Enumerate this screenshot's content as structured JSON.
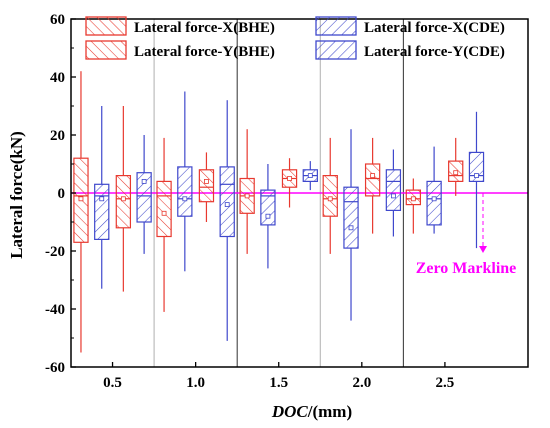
{
  "chart_data": {
    "type": "box",
    "title": "",
    "xlabel_italic": "DOC",
    "xlabel_rest": "/(mm)",
    "ylabel": "Lateral force(kN)",
    "ylim": [
      -60,
      60
    ],
    "yticks": [
      -60,
      -40,
      -20,
      0,
      20,
      40,
      60
    ],
    "categories": [
      "0.5",
      "1.0",
      "1.5",
      "2.0",
      "2.5"
    ],
    "xlim": [
      0.25,
      3.0
    ],
    "zero_line": {
      "value": 0,
      "label": "Zero Markline",
      "color": "#ff00ff"
    },
    "legend": {
      "placement": "top",
      "entries": [
        "Lateral force-X(BHE)",
        "Lateral force-Y(BHE)",
        "Lateral force-X(CDE)",
        "Lateral force-Y(CDE)"
      ]
    },
    "series": [
      {
        "name": "Lateral force-X(BHE)",
        "color": "#e8392f",
        "hatch": "up",
        "offset": -0.19,
        "boxes": [
          {
            "min": -55,
            "q1": -17,
            "median": -1,
            "q3": 12,
            "max": 42,
            "mean": -2
          },
          {
            "min": -41,
            "q1": -15,
            "median": -1,
            "q3": 4,
            "max": 19,
            "mean": -7
          },
          {
            "min": -21,
            "q1": -7,
            "median": -1,
            "q3": 5,
            "max": 22,
            "mean": -1
          },
          {
            "min": -21,
            "q1": -8,
            "median": -2,
            "q3": 6,
            "max": 19,
            "mean": -2
          },
          {
            "min": -14,
            "q1": -4,
            "median": -2,
            "q3": 1,
            "max": 5,
            "mean": -2
          }
        ]
      },
      {
        "name": "Lateral force-X(CDE)",
        "color": "#3f48cc",
        "hatch": "down",
        "offset": -0.065,
        "boxes": [
          {
            "min": -33,
            "q1": -16,
            "median": -1,
            "q3": 3,
            "max": 30,
            "mean": -2
          },
          {
            "min": -27,
            "q1": -8,
            "median": -2,
            "q3": 9,
            "max": 35,
            "mean": -2
          },
          {
            "min": -26,
            "q1": -11,
            "median": -1,
            "q3": 1,
            "max": 10,
            "mean": -8
          },
          {
            "min": -44,
            "q1": -19,
            "median": -3,
            "q3": 2,
            "max": 22,
            "mean": -12
          },
          {
            "min": -14,
            "q1": -11,
            "median": -2,
            "q3": 4,
            "max": 16,
            "mean": -2
          }
        ]
      },
      {
        "name": "Lateral force-Y(BHE)",
        "color": "#e8392f",
        "hatch": "up",
        "offset": 0.065,
        "boxes": [
          {
            "min": -34,
            "q1": -12,
            "median": -2,
            "q3": 6,
            "max": 30,
            "mean": -2
          },
          {
            "min": -10,
            "q1": -3,
            "median": 2,
            "q3": 8,
            "max": 14,
            "mean": 4
          },
          {
            "min": -5,
            "q1": 2,
            "median": 5,
            "q3": 8,
            "max": 12,
            "mean": 5
          },
          {
            "min": -14,
            "q1": -1,
            "median": 5,
            "q3": 10,
            "max": 19,
            "mean": 6
          },
          {
            "min": -1,
            "q1": 4,
            "median": 6,
            "q3": 11,
            "max": 19,
            "mean": 7
          }
        ]
      },
      {
        "name": "Lateral force-Y(CDE)",
        "color": "#3f48cc",
        "hatch": "down",
        "offset": 0.19,
        "boxes": [
          {
            "min": -21,
            "q1": -10,
            "median": -1,
            "q3": 7,
            "max": 20,
            "mean": 4
          },
          {
            "min": -51,
            "q1": -15,
            "median": 3,
            "q3": 9,
            "max": 32,
            "mean": -4
          },
          {
            "min": 1,
            "q1": 4,
            "median": 6,
            "q3": 8,
            "max": 11,
            "mean": 6
          },
          {
            "min": -15,
            "q1": -6,
            "median": 4,
            "q3": 8,
            "max": 15,
            "mean": -1
          },
          {
            "min": -19,
            "q1": 4,
            "median": 6,
            "q3": 14,
            "max": 28,
            "mean": 6
          }
        ]
      }
    ]
  }
}
